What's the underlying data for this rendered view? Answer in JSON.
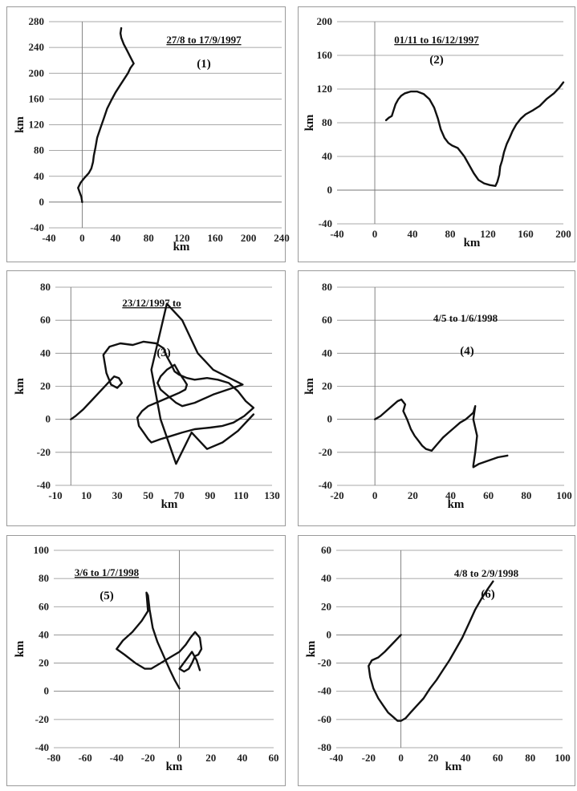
{
  "chart_data": [
    {
      "type": "line",
      "title": "27/8 to 17/9/1997",
      "title_underlined": true,
      "panel_number": "(1)",
      "xlabel": "km",
      "ylabel": "km",
      "xlim": [
        -40,
        240
      ],
      "ylim": [
        -40,
        280
      ],
      "xticks": [
        -40,
        0,
        40,
        80,
        120,
        160,
        200,
        240
      ],
      "yticks": [
        -40,
        0,
        40,
        80,
        120,
        160,
        200,
        240,
        280
      ],
      "xtick_labels": [
        "-40",
        "0",
        "40",
        "80",
        "120",
        "160",
        "200",
        "240"
      ],
      "ytick_labels": [
        "-40",
        "0",
        "40",
        "80",
        "120",
        "160",
        "200",
        "240",
        "280"
      ],
      "grid": "horizontal",
      "x": [
        0,
        -1,
        -3,
        -5,
        -2,
        3,
        8,
        11,
        13,
        14,
        16,
        18,
        22,
        26,
        30,
        35,
        40,
        45,
        50,
        55,
        58,
        62,
        58,
        54,
        50,
        47,
        46,
        47
      ],
      "y": [
        0,
        8,
        15,
        22,
        30,
        38,
        45,
        52,
        62,
        72,
        85,
        100,
        115,
        130,
        145,
        158,
        170,
        180,
        190,
        200,
        208,
        215,
        225,
        235,
        245,
        255,
        262,
        270
      ]
    },
    {
      "type": "line",
      "title": "01/11 to 16/12/1997",
      "title_underlined": true,
      "panel_number": "(2)",
      "xlabel": "km",
      "ylabel": "km",
      "xlim": [
        -40,
        200
      ],
      "ylim": [
        -40,
        200
      ],
      "xticks": [
        -40,
        0,
        40,
        80,
        120,
        160,
        200
      ],
      "yticks": [
        -40,
        0,
        40,
        80,
        120,
        160,
        200
      ],
      "xtick_labels": [
        "-40",
        "0",
        "40",
        "80",
        "120",
        "160",
        "200"
      ],
      "ytick_labels": [
        "-40",
        "0",
        "40",
        "80",
        "120",
        "160",
        "200"
      ],
      "grid": "horizontal",
      "x": [
        12,
        15,
        18,
        20,
        22,
        25,
        28,
        32,
        38,
        45,
        52,
        58,
        63,
        67,
        70,
        74,
        78,
        82,
        88,
        95,
        100,
        105,
        110,
        116,
        122,
        128,
        130,
        132,
        133,
        135,
        137,
        140,
        143,
        146,
        150,
        155,
        160,
        168,
        175,
        182,
        190,
        196,
        200
      ],
      "y": [
        83,
        86,
        88,
        95,
        102,
        108,
        112,
        115,
        117,
        117,
        114,
        108,
        98,
        85,
        72,
        62,
        56,
        53,
        50,
        40,
        30,
        20,
        12,
        8,
        6,
        5,
        10,
        18,
        28,
        35,
        45,
        55,
        62,
        70,
        78,
        85,
        90,
        95,
        100,
        108,
        115,
        122,
        128
      ]
    },
    {
      "type": "line",
      "title": "23/12/1997 to",
      "title_underlined": true,
      "panel_number": "(3)",
      "xlabel": "km",
      "ylabel": "km",
      "xlim": [
        -10,
        130
      ],
      "ylim": [
        -40,
        80
      ],
      "xticks": [
        -10,
        10,
        30,
        50,
        70,
        90,
        110,
        130
      ],
      "yticks": [
        -40,
        -20,
        0,
        20,
        40,
        60,
        80
      ],
      "xtick_labels": [
        "-10",
        "10",
        "30",
        "50",
        "70",
        "90",
        "110",
        "130"
      ],
      "ytick_labels": [
        "-40",
        "-20",
        "0",
        "20",
        "40",
        "60",
        "80"
      ],
      "grid": "horizontal",
      "x": [
        0,
        3,
        8,
        14,
        20,
        25,
        28,
        31,
        33,
        30,
        26,
        23,
        21,
        25,
        32,
        40,
        47,
        55,
        60,
        62,
        65,
        67,
        70,
        75,
        80,
        88,
        95,
        102,
        108,
        113,
        118,
        112,
        105,
        98,
        90,
        80,
        72,
        65,
        58,
        52,
        50,
        47,
        44,
        43,
        46,
        50,
        55,
        60,
        65,
        70,
        74,
        75,
        73,
        70,
        67,
        62,
        58,
        56,
        58,
        63,
        68,
        72,
        80,
        92,
        111,
        92,
        82,
        72,
        62,
        52,
        58,
        68,
        78,
        88,
        98,
        108,
        118
      ],
      "y": [
        0,
        2,
        6,
        12,
        18,
        23,
        26,
        25,
        22,
        19,
        21,
        28,
        39,
        44,
        46,
        45,
        47,
        46,
        43,
        38,
        33,
        29,
        27,
        25,
        24,
        25,
        24,
        22,
        17,
        11,
        7,
        2,
        -2,
        -4,
        -5,
        -6,
        -8,
        -10,
        -12,
        -14,
        -12,
        -8,
        -4,
        1,
        5,
        8,
        10,
        12,
        14,
        16,
        18,
        21,
        24,
        28,
        33,
        30,
        26,
        22,
        18,
        14,
        10,
        8,
        10,
        15,
        21,
        30,
        40,
        60,
        70,
        30,
        0,
        -27,
        -8,
        -18,
        -14,
        -7,
        3
      ]
    },
    {
      "type": "line",
      "title": "4/5 to 1/6/1998",
      "title_underlined": false,
      "panel_number": "(4)",
      "xlabel": "km",
      "ylabel": "km",
      "xlim": [
        -20,
        100
      ],
      "ylim": [
        -40,
        80
      ],
      "xticks": [
        -20,
        0,
        20,
        40,
        60,
        80,
        100
      ],
      "yticks": [
        -40,
        -20,
        0,
        20,
        40,
        60,
        80
      ],
      "xtick_labels": [
        "-20",
        "0",
        "20",
        "40",
        "60",
        "80",
        "100"
      ],
      "ytick_labels": [
        "-40",
        "-20",
        "0",
        "20",
        "40",
        "60",
        "80"
      ],
      "grid": "horizontal",
      "x": [
        0,
        3,
        6,
        9,
        12,
        14,
        16,
        15,
        17,
        19,
        21,
        23,
        25,
        27,
        30,
        33,
        36,
        39,
        42,
        45,
        48,
        50,
        52,
        53,
        52,
        54,
        53,
        52,
        52,
        55,
        60,
        65,
        70
      ],
      "y": [
        0,
        2,
        5,
        8,
        11,
        12,
        9,
        5,
        0,
        -6,
        -10,
        -13,
        -16,
        -18,
        -19,
        -15,
        -11,
        -8,
        -5,
        -2,
        0,
        2,
        4,
        8,
        0,
        -10,
        -20,
        -28,
        -29,
        -27,
        -25,
        -23,
        -22
      ]
    },
    {
      "type": "line",
      "title": "3/6 to 1/7/1998",
      "title_underlined": true,
      "panel_number": "(5)",
      "xlabel": "km",
      "ylabel": "km",
      "xlim": [
        -80,
        60
      ],
      "ylim": [
        -40,
        100
      ],
      "xticks": [
        -80,
        -60,
        -40,
        -20,
        0,
        20,
        40,
        60
      ],
      "yticks": [
        -40,
        -20,
        0,
        20,
        40,
        60,
        80,
        100
      ],
      "xtick_labels": [
        "-80",
        "-60",
        "-40",
        "-20",
        "0",
        "20",
        "40",
        "60"
      ],
      "ytick_labels": [
        "-40",
        "-20",
        "0",
        "20",
        "40",
        "60",
        "80",
        "100"
      ],
      "grid": "horizontal",
      "x": [
        0,
        -3,
        -6,
        -10,
        -14,
        -17,
        -19,
        -20,
        -21,
        -20,
        -24,
        -30,
        -36,
        -40,
        -35,
        -28,
        -22,
        -18,
        -12,
        -6,
        0,
        4,
        7,
        10,
        13,
        14,
        12,
        10,
        8,
        6,
        3,
        0,
        4,
        8,
        11,
        13
      ],
      "y": [
        2,
        8,
        15,
        25,
        35,
        45,
        58,
        68,
        70,
        57,
        50,
        42,
        36,
        30,
        26,
        20,
        16,
        16,
        20,
        24,
        28,
        33,
        38,
        42,
        38,
        30,
        26,
        25,
        20,
        16,
        14,
        16,
        22,
        28,
        22,
        15
      ]
    },
    {
      "type": "line",
      "title": "4/8 to 2/9/1998",
      "title_underlined": false,
      "panel_number": "(6)",
      "xlabel": "km",
      "ylabel": "km",
      "xlim": [
        -40,
        100
      ],
      "ylim": [
        -80,
        60
      ],
      "xticks": [
        -40,
        -20,
        0,
        20,
        40,
        60,
        80,
        100
      ],
      "yticks": [
        -80,
        -60,
        -40,
        -20,
        0,
        20,
        40,
        60
      ],
      "xtick_labels": [
        "-40",
        "-20",
        "0",
        "20",
        "40",
        "60",
        "80",
        "100"
      ],
      "ytick_labels": [
        "-80",
        "-60",
        "-40",
        "-20",
        "0",
        "20",
        "40",
        "60"
      ],
      "grid": "horizontal",
      "x": [
        0,
        -5,
        -10,
        -14,
        -18,
        -20,
        -19,
        -17,
        -14,
        -11,
        -8,
        -5,
        -2,
        0,
        3,
        6,
        10,
        14,
        18,
        22,
        26,
        30,
        34,
        38,
        42,
        46,
        50,
        54,
        57
      ],
      "y": [
        0,
        -6,
        -12,
        -16,
        -18,
        -22,
        -30,
        -38,
        -45,
        -50,
        -55,
        -58,
        -61,
        -61,
        -59,
        -55,
        -50,
        -45,
        -38,
        -32,
        -25,
        -18,
        -10,
        -2,
        8,
        18,
        26,
        33,
        38
      ]
    }
  ]
}
